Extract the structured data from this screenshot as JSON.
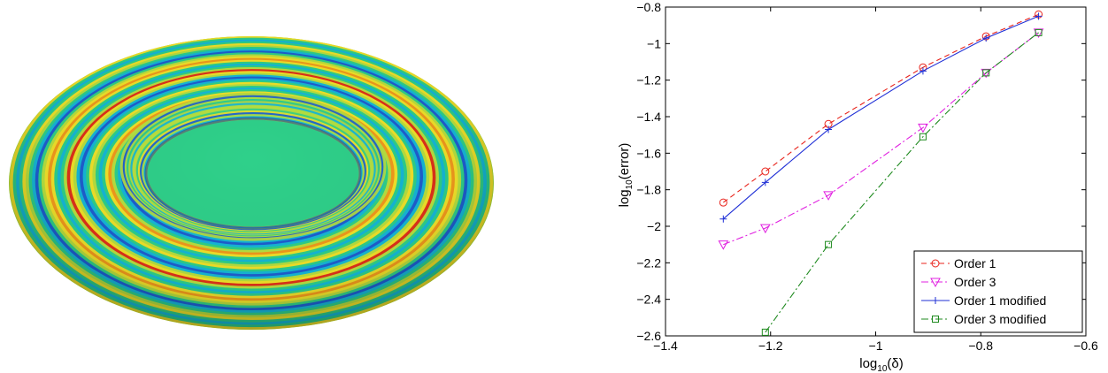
{
  "chart_data": {
    "type": "line",
    "xlabel": {
      "base": "log",
      "sub": "10",
      "arg": "(δ)"
    },
    "ylabel": {
      "base": "log",
      "sub": "10",
      "arg": "(error)"
    },
    "xlim": [
      -1.4,
      -0.6
    ],
    "ylim": [
      -2.6,
      -0.8
    ],
    "xticks": [
      -1.4,
      -1.2,
      -1,
      -0.8,
      -0.6
    ],
    "xtick_labels": [
      "−1.4",
      "−1.2",
      "−1",
      "−0.8",
      "−0.6"
    ],
    "yticks": [
      -2.6,
      -2.4,
      -2.2,
      -2,
      -1.8,
      -1.6,
      -1.4,
      -1.2,
      -1,
      -0.8
    ],
    "ytick_labels": [
      "−2.6",
      "−2.4",
      "−2.2",
      "−2",
      "−1.8",
      "−1.6",
      "−1.4",
      "−1.2",
      "−1",
      "−0.8"
    ],
    "grid": false,
    "legend_position": "bottom-right",
    "series": [
      {
        "name": "Order 1",
        "color": "#e8231b",
        "dash": "6,4",
        "marker": "circle",
        "x": [
          -1.29,
          -1.21,
          -1.09,
          -0.91,
          -0.79,
          -0.69
        ],
        "y": [
          -1.87,
          -1.7,
          -1.44,
          -1.13,
          -0.96,
          -0.84
        ]
      },
      {
        "name": "Order 3",
        "color": "#e020e0",
        "dash": "8,3,2,3",
        "marker": "triangle-down",
        "x": [
          -1.29,
          -1.21,
          -1.09,
          -0.91,
          -0.79,
          -0.69
        ],
        "y": [
          -2.1,
          -2.01,
          -1.83,
          -1.46,
          -1.16,
          -0.94
        ]
      },
      {
        "name": "Order 1 modified",
        "color": "#1f2fd6",
        "dash": "",
        "marker": "plus",
        "x": [
          -1.29,
          -1.21,
          -1.09,
          -0.91,
          -0.79,
          -0.69
        ],
        "y": [
          -1.96,
          -1.76,
          -1.47,
          -1.15,
          -0.97,
          -0.85
        ]
      },
      {
        "name": "Order 3 modified",
        "color": "#1f8a1f",
        "dash": "8,3,2,3",
        "marker": "square",
        "x": [
          -1.21,
          -1.09,
          -0.91,
          -0.79,
          -0.69
        ],
        "y": [
          -2.58,
          -2.1,
          -1.51,
          -1.16,
          -0.94
        ]
      }
    ]
  },
  "torus": {
    "palette": [
      "#1f5fd0",
      "#16b8d8",
      "#2fd08a",
      "#b8e040",
      "#f2e32a",
      "#f29a1d",
      "#e0321a"
    ]
  }
}
